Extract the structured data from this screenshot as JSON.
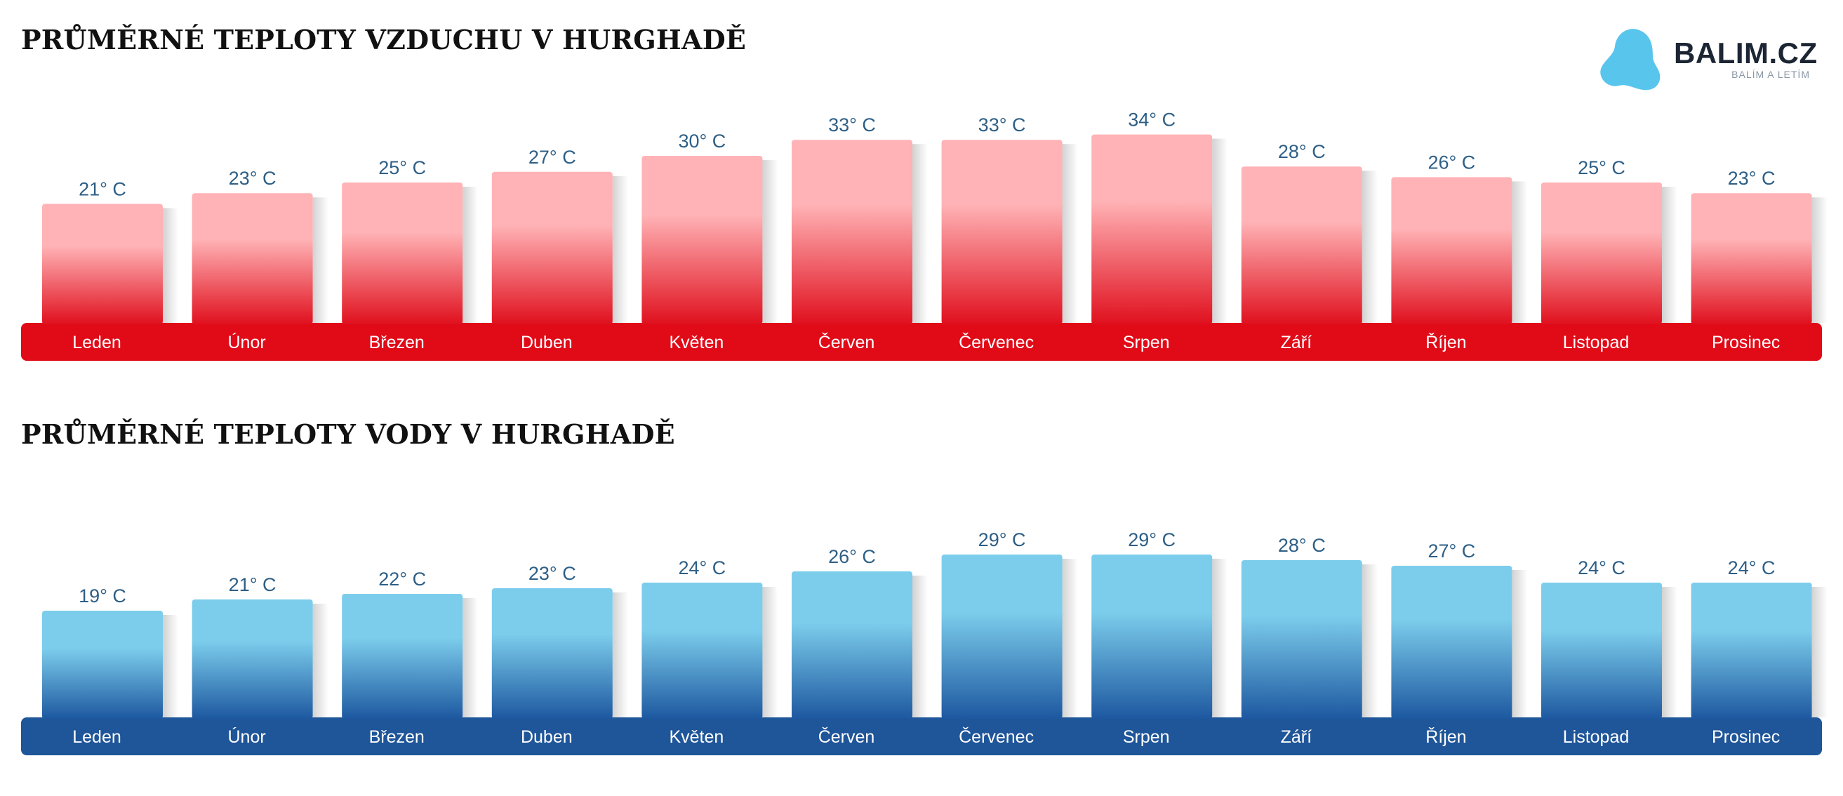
{
  "brand": {
    "name": "BALIM.CZ",
    "tagline": "BALÍM A LETÍM",
    "colors": {
      "drop": "#58c5ec",
      "text": "#1c2533"
    }
  },
  "air": {
    "title": "PRŮMĚRNÉ TEPLOTY VZDUCHU V HURGHADĚ"
  },
  "water": {
    "title": "PRŮMĚRNÉ TEPLOTY VODY V HURGHADĚ"
  },
  "chart_data": [
    {
      "type": "bar",
      "title": "PRŮMĚRNÉ TEPLOTY VZDUCHU V HURGHADĚ",
      "categories": [
        "Leden",
        "Únor",
        "Březen",
        "Duben",
        "Květen",
        "Červen",
        "Červenec",
        "Srpen",
        "Září",
        "Říjen",
        "Listopad",
        "Prosinec"
      ],
      "values": [
        21,
        23,
        25,
        27,
        30,
        33,
        33,
        34,
        28,
        26,
        25,
        23
      ],
      "labels": [
        "21° C",
        "23° C",
        "25° C",
        "27° C",
        "30° C",
        "33° C",
        "33° C",
        "34° C",
        "28° C",
        "26° C",
        "25° C",
        "23° C"
      ],
      "grid": false,
      "colors": {
        "bar_top": "#ffb3b6",
        "bar_bottom": "#e0101e",
        "strip": "#e10b18",
        "value_label": "#2e5f86"
      }
    },
    {
      "type": "bar",
      "title": "PRŮMĚRNÉ TEPLOTY VODY V HURGHADĚ",
      "categories": [
        "Leden",
        "Únor",
        "Březen",
        "Duben",
        "Květen",
        "Červen",
        "Červenec",
        "Srpen",
        "Září",
        "Říjen",
        "Listopad",
        "Prosinec"
      ],
      "values": [
        19,
        21,
        22,
        23,
        24,
        26,
        29,
        29,
        28,
        27,
        24,
        24
      ],
      "labels": [
        "19° C",
        "21° C",
        "22° C",
        "23° C",
        "24° C",
        "26° C",
        "29° C",
        "29° C",
        "28° C",
        "27° C",
        "24° C",
        "24° C"
      ],
      "grid": false,
      "colors": {
        "bar_top": "#7ccdec",
        "bar_bottom": "#1d58a0",
        "strip": "#1f5599",
        "value_label": "#2e5f86"
      }
    }
  ]
}
